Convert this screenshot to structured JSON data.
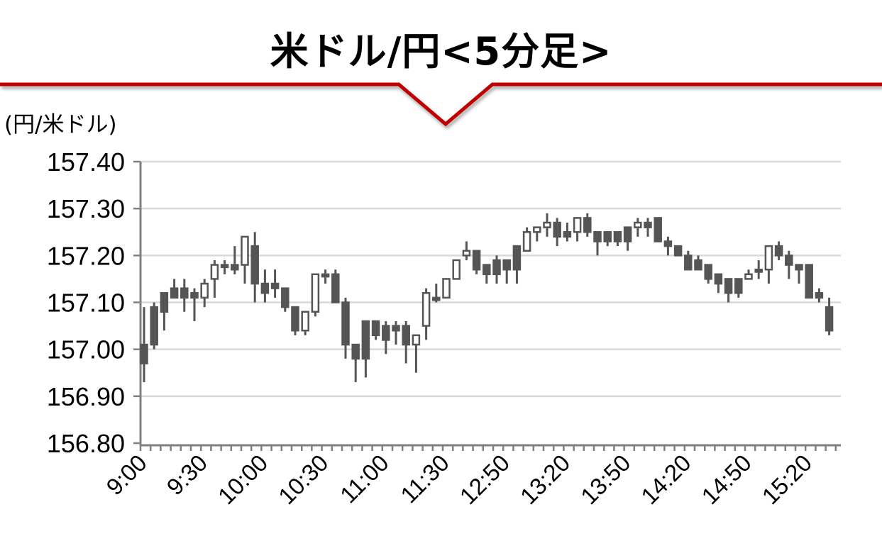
{
  "title": "米ドル/円<5分足>",
  "colors": {
    "accent_line": "#c00000",
    "candle": "#555555",
    "grid": "#d9d9d9",
    "axis": "#808080"
  },
  "chart_data": {
    "type": "candlestick",
    "title": "米ドル/円<5分足>",
    "ylabel": "(円/米ドル)",
    "ylim": [
      156.8,
      157.4
    ],
    "yticks": [
      "157.40",
      "157.30",
      "157.20",
      "157.10",
      "157.00",
      "156.90",
      "156.80"
    ],
    "grid": true,
    "xtick_labels": [
      {
        "index": 0,
        "label": "9:00"
      },
      {
        "index": 6,
        "label": "9:30"
      },
      {
        "index": 12,
        "label": "10:00"
      },
      {
        "index": 18,
        "label": "10:30"
      },
      {
        "index": 24,
        "label": "11:00"
      },
      {
        "index": 30,
        "label": "11:30"
      },
      {
        "index": 36,
        "label": "12:50"
      },
      {
        "index": 42,
        "label": "13:20"
      },
      {
        "index": 48,
        "label": "13:50"
      },
      {
        "index": 54,
        "label": "14:20"
      },
      {
        "index": 60,
        "label": "14:50"
      },
      {
        "index": 66,
        "label": "15:20"
      }
    ],
    "ohlc": [
      [
        157.01,
        157.09,
        156.93,
        156.97
      ],
      [
        157.09,
        157.1,
        157.0,
        157.01
      ],
      [
        157.12,
        157.12,
        157.04,
        157.08
      ],
      [
        157.13,
        157.15,
        157.11,
        157.11
      ],
      [
        157.13,
        157.15,
        157.08,
        157.11
      ],
      [
        157.12,
        157.13,
        157.06,
        157.11
      ],
      [
        157.11,
        157.15,
        157.09,
        157.14
      ],
      [
        157.15,
        157.19,
        157.11,
        157.18
      ],
      [
        157.18,
        157.19,
        157.16,
        157.175
      ],
      [
        157.18,
        157.22,
        157.16,
        157.17
      ],
      [
        157.18,
        157.24,
        157.14,
        157.24
      ],
      [
        157.22,
        157.25,
        157.1,
        157.14
      ],
      [
        157.14,
        157.17,
        157.1,
        157.12
      ],
      [
        157.14,
        157.17,
        157.11,
        157.13
      ],
      [
        157.13,
        157.13,
        157.08,
        157.09
      ],
      [
        157.09,
        157.09,
        157.03,
        157.04
      ],
      [
        157.04,
        157.08,
        157.03,
        157.08
      ],
      [
        157.08,
        157.16,
        157.07,
        157.16
      ],
      [
        157.16,
        157.17,
        157.14,
        157.155
      ],
      [
        157.16,
        157.17,
        157.1,
        157.1
      ],
      [
        157.1,
        157.11,
        156.98,
        157.01
      ],
      [
        157.01,
        157.01,
        156.93,
        156.98
      ],
      [
        157.06,
        157.06,
        156.94,
        156.98
      ],
      [
        157.06,
        157.06,
        157.02,
        157.03
      ],
      [
        157.05,
        157.06,
        156.99,
        157.02
      ],
      [
        157.05,
        157.06,
        157.01,
        157.04
      ],
      [
        157.05,
        157.06,
        156.97,
        157.01
      ],
      [
        157.01,
        157.03,
        156.95,
        157.03
      ],
      [
        157.05,
        157.13,
        157.02,
        157.12
      ],
      [
        157.11,
        157.14,
        157.1,
        157.105
      ],
      [
        157.11,
        157.15,
        157.11,
        157.15
      ],
      [
        157.15,
        157.19,
        157.15,
        157.19
      ],
      [
        157.2,
        157.23,
        157.19,
        157.21
      ],
      [
        157.21,
        157.21,
        157.16,
        157.17
      ],
      [
        157.18,
        157.18,
        157.14,
        157.16
      ],
      [
        157.19,
        157.2,
        157.14,
        157.16
      ],
      [
        157.19,
        157.19,
        157.14,
        157.17
      ],
      [
        157.22,
        157.22,
        157.14,
        157.17
      ],
      [
        157.21,
        157.26,
        157.21,
        157.25
      ],
      [
        157.25,
        157.26,
        157.23,
        157.26
      ],
      [
        157.26,
        157.29,
        157.24,
        157.27
      ],
      [
        157.27,
        157.28,
        157.22,
        157.24
      ],
      [
        157.25,
        157.27,
        157.23,
        157.24
      ],
      [
        157.25,
        157.28,
        157.23,
        157.28
      ],
      [
        157.28,
        157.29,
        157.24,
        157.25
      ],
      [
        157.25,
        157.25,
        157.2,
        157.23
      ],
      [
        157.25,
        157.25,
        157.22,
        157.23
      ],
      [
        157.25,
        157.25,
        157.22,
        157.23
      ],
      [
        157.26,
        157.26,
        157.21,
        157.23
      ],
      [
        157.26,
        157.28,
        157.24,
        157.27
      ],
      [
        157.27,
        157.28,
        157.24,
        157.26
      ],
      [
        157.28,
        157.28,
        157.23,
        157.23
      ],
      [
        157.23,
        157.24,
        157.2,
        157.22
      ],
      [
        157.22,
        157.22,
        157.2,
        157.2
      ],
      [
        157.2,
        157.21,
        157.17,
        157.17
      ],
      [
        157.19,
        157.2,
        157.17,
        157.17
      ],
      [
        157.18,
        157.18,
        157.14,
        157.15
      ],
      [
        157.16,
        157.16,
        157.12,
        157.14
      ],
      [
        157.15,
        157.15,
        157.1,
        157.12
      ],
      [
        157.15,
        157.15,
        157.11,
        157.12
      ],
      [
        157.15,
        157.17,
        157.15,
        157.16
      ],
      [
        157.17,
        157.19,
        157.15,
        157.165
      ],
      [
        157.17,
        157.22,
        157.14,
        157.22
      ],
      [
        157.22,
        157.23,
        157.19,
        157.2
      ],
      [
        157.2,
        157.21,
        157.15,
        157.18
      ],
      [
        157.18,
        157.18,
        157.14,
        157.17
      ],
      [
        157.18,
        157.18,
        157.11,
        157.11
      ],
      [
        157.12,
        157.13,
        157.1,
        157.11
      ],
      [
        157.09,
        157.11,
        157.03,
        157.04
      ]
    ]
  }
}
